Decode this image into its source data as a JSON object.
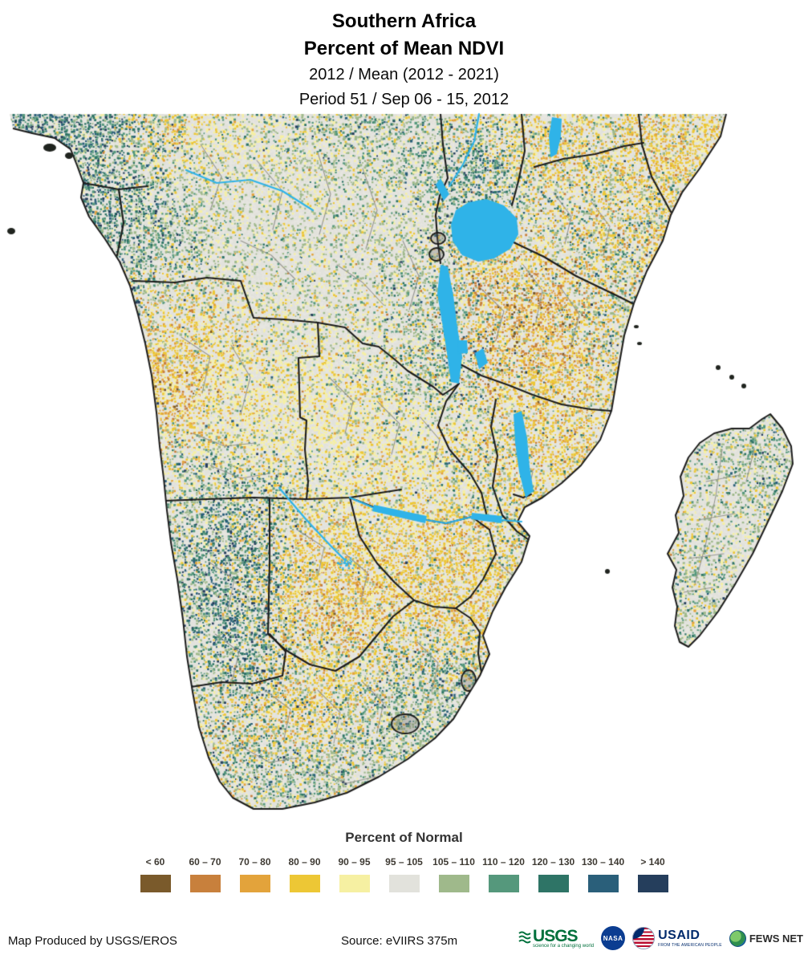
{
  "header": {
    "title_line1": "Southern Africa",
    "title_line2": "Percent of Mean NDVI",
    "subtitle_line1": "2012 / Mean (2012 - 2021)",
    "subtitle_line2": "Period 51 / Sep 06 - 15, 2012"
  },
  "legend": {
    "title": "Percent of Normal",
    "classes": [
      {
        "label": "< 60",
        "color": "#7a5a2b"
      },
      {
        "label": "60 – 70",
        "color": "#c8803c"
      },
      {
        "label": "70 – 80",
        "color": "#e3a33b"
      },
      {
        "label": "80 – 90",
        "color": "#edc735"
      },
      {
        "label": "90 – 95",
        "color": "#f6f0a2"
      },
      {
        "label": "95 – 105",
        "color": "#e2e2dc"
      },
      {
        "label": "105 – 110",
        "color": "#9fb98b"
      },
      {
        "label": "110 – 120",
        "color": "#55987c"
      },
      {
        "label": "120 – 130",
        "color": "#2e7466"
      },
      {
        "label": "130 – 140",
        "color": "#2a5f7a"
      },
      {
        "label": "> 140",
        "color": "#253e5c"
      }
    ]
  },
  "map": {
    "region": "Southern Africa",
    "land_base_color": "#e7e6e1",
    "ocean_color": "#ffffff",
    "water_color": "#2fb3e8",
    "country_border_color": "#1c1c1c",
    "admin_border_color": "#8f8f8a"
  },
  "footer": {
    "produced_by": "Map Produced by USGS/EROS",
    "source": "Source: eVIIRS 375m",
    "logos": {
      "usgs": {
        "text": "USGS",
        "tagline": "science for a changing world"
      },
      "nasa": {
        "text": "NASA"
      },
      "usaid": {
        "text": "USAID",
        "tagline": "FROM THE AMERICAN PEOPLE"
      },
      "fewsnet": {
        "text": "FEWS NET"
      }
    }
  }
}
